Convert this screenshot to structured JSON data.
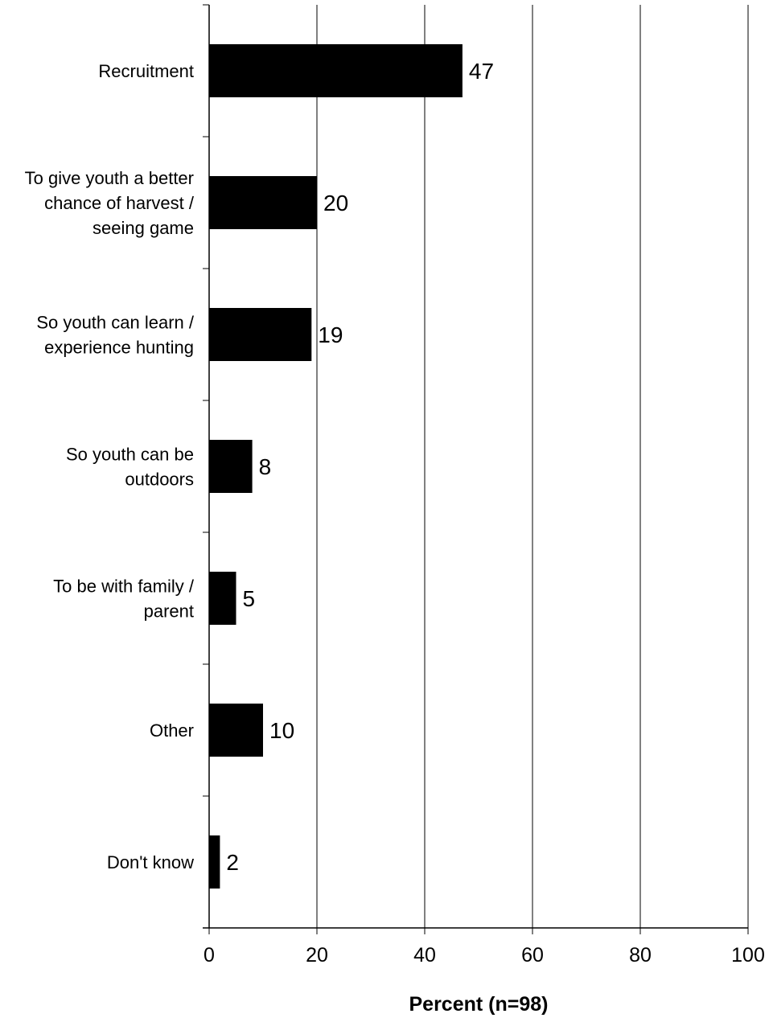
{
  "chart_data": {
    "type": "bar",
    "orientation": "horizontal",
    "categories": [
      [
        "Recruitment"
      ],
      [
        "To give youth a better",
        "chance of harvest /",
        "seeing game"
      ],
      [
        "So youth can learn /",
        "experience hunting"
      ],
      [
        "So youth can be",
        "outdoors"
      ],
      [
        "To be with family /",
        "parent"
      ],
      [
        "Other"
      ],
      [
        "Don't know"
      ]
    ],
    "values": [
      47,
      20,
      19,
      8,
      5,
      10,
      2
    ],
    "value_labels": [
      "47",
      "20",
      "19",
      "8",
      "5",
      "10",
      "2"
    ],
    "xlabel": "Percent (n=98)",
    "xlim": [
      0,
      100
    ],
    "xticks": [
      "0",
      "20",
      "40",
      "60",
      "80",
      "100"
    ],
    "grid": "vertical",
    "bar_color": "#000000"
  }
}
